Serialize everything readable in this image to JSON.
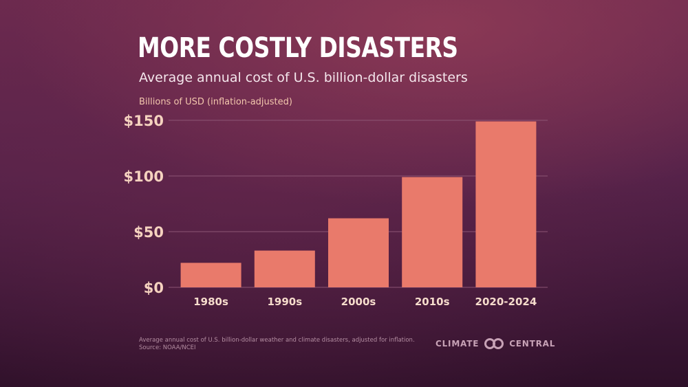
{
  "title": "MORE COSTLY DISASTERS",
  "subtitle": "Average annual cost of U.S. billion-dollar disasters",
  "unit_label": "Billions of USD (inflation-adjusted)",
  "footnote": {
    "line1": "Average annual cost of U.S. billion-dollar weather and climate disasters, adjusted for inflation.",
    "line2": "Source: NOAA/NCEI"
  },
  "logo": {
    "left": "CLIMATE",
    "right": "CENTRAL",
    "icon": "linked-circles-icon"
  },
  "colors": {
    "bar": "#e97a6b",
    "gridline": "#8d5575",
    "tick_text": "#f5d2bf"
  },
  "chart_data": {
    "type": "bar",
    "categories": [
      "1980s",
      "1990s",
      "2000s",
      "2010s",
      "2020-2024"
    ],
    "values": [
      22,
      33,
      62,
      99,
      149
    ],
    "ylim": [
      0,
      150
    ],
    "yticks": [
      0,
      50,
      100,
      150
    ],
    "ytick_labels": [
      "$0",
      "$50",
      "$100",
      "$150"
    ],
    "grid": true
  }
}
